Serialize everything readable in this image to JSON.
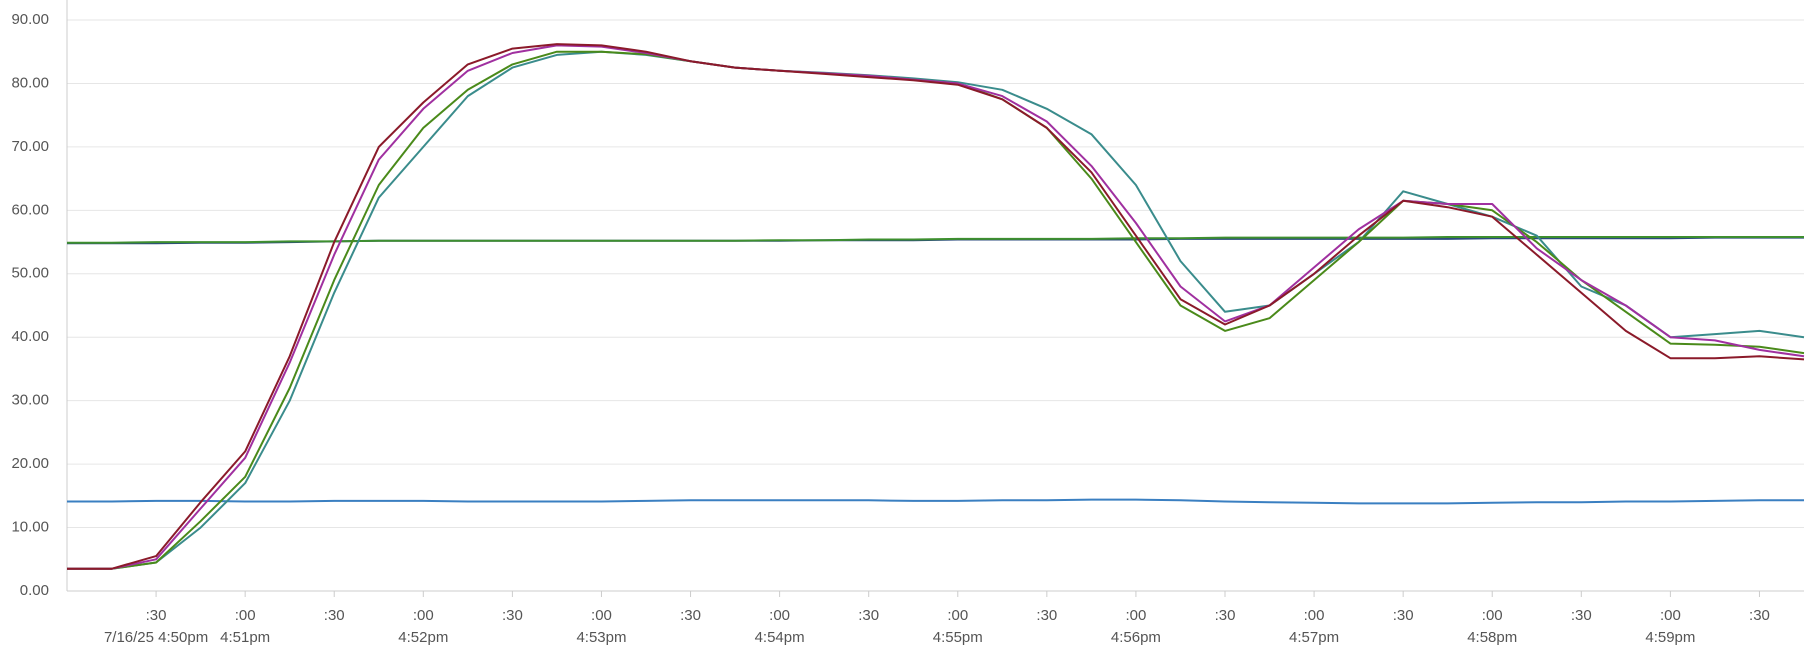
{
  "chart_data": {
    "type": "line",
    "x": [
      "16:50:00",
      "16:50:15",
      "16:50:30",
      "16:50:45",
      "16:51:00",
      "16:51:15",
      "16:51:30",
      "16:51:45",
      "16:52:00",
      "16:52:15",
      "16:52:30",
      "16:52:45",
      "16:53:00",
      "16:53:15",
      "16:53:30",
      "16:53:45",
      "16:54:00",
      "16:54:15",
      "16:54:30",
      "16:54:45",
      "16:55:00",
      "16:55:15",
      "16:55:30",
      "16:55:45",
      "16:56:00",
      "16:56:15",
      "16:56:30",
      "16:56:45",
      "16:57:00",
      "16:57:15",
      "16:57:30",
      "16:57:45",
      "16:58:00",
      "16:58:15",
      "16:58:30",
      "16:58:45",
      "16:59:00",
      "16:59:15",
      "16:59:30",
      "16:59:45"
    ],
    "xlim": [
      "16:50:00",
      "16:59:45"
    ],
    "xticks": [
      {
        "value": "16:50:30",
        "label": ":30"
      },
      {
        "value": "16:51:00",
        "label": ":00"
      },
      {
        "value": "16:51:30",
        "label": ":30"
      },
      {
        "value": "16:52:00",
        "label": ":00"
      },
      {
        "value": "16:52:30",
        "label": ":30"
      },
      {
        "value": "16:53:00",
        "label": ":00"
      },
      {
        "value": "16:53:30",
        "label": ":30"
      },
      {
        "value": "16:54:00",
        "label": ":00"
      },
      {
        "value": "16:54:30",
        "label": ":30"
      },
      {
        "value": "16:55:00",
        "label": ":00"
      },
      {
        "value": "16:55:30",
        "label": ":30"
      },
      {
        "value": "16:56:00",
        "label": ":00"
      },
      {
        "value": "16:56:30",
        "label": ":30"
      },
      {
        "value": "16:57:00",
        "label": ":00"
      },
      {
        "value": "16:57:30",
        "label": ":30"
      },
      {
        "value": "16:58:00",
        "label": ":00"
      },
      {
        "value": "16:58:30",
        "label": ":30"
      },
      {
        "value": "16:59:00",
        "label": ":00"
      },
      {
        "value": "16:59:30",
        "label": ":30"
      }
    ],
    "xticks_secondary": [
      {
        "value": "16:50:30",
        "label": "7/16/25 4:50pm"
      },
      {
        "value": "16:51:00",
        "label": "4:51pm"
      },
      {
        "value": "16:52:00",
        "label": "4:52pm"
      },
      {
        "value": "16:53:00",
        "label": "4:53pm"
      },
      {
        "value": "16:54:00",
        "label": "4:54pm"
      },
      {
        "value": "16:55:00",
        "label": "4:55pm"
      },
      {
        "value": "16:56:00",
        "label": "4:56pm"
      },
      {
        "value": "16:57:00",
        "label": "4:57pm"
      },
      {
        "value": "16:58:00",
        "label": "4:58pm"
      },
      {
        "value": "16:59:00",
        "label": "4:59pm"
      }
    ],
    "ylim": [
      0,
      90
    ],
    "yticks": [
      {
        "value": 0,
        "label": "0.00"
      },
      {
        "value": 10,
        "label": "10.00"
      },
      {
        "value": 20,
        "label": "20.00"
      },
      {
        "value": 30,
        "label": "30.00"
      },
      {
        "value": 40,
        "label": "40.00"
      },
      {
        "value": 50,
        "label": "50.00"
      },
      {
        "value": 60,
        "label": "60.00"
      },
      {
        "value": 70,
        "label": "70.00"
      },
      {
        "value": 80,
        "label": "80.00"
      },
      {
        "value": 90,
        "label": "90.00"
      }
    ],
    "grid": true,
    "series": [
      {
        "color": "#3a7fc1",
        "values": [
          14.1,
          14.1,
          14.2,
          14.2,
          14.1,
          14.1,
          14.2,
          14.2,
          14.2,
          14.1,
          14.1,
          14.1,
          14.1,
          14.2,
          14.3,
          14.3,
          14.3,
          14.3,
          14.3,
          14.2,
          14.2,
          14.3,
          14.3,
          14.4,
          14.4,
          14.3,
          14.1,
          14.0,
          13.9,
          13.8,
          13.8,
          13.8,
          13.9,
          14.0,
          14.0,
          14.1,
          14.1,
          14.2,
          14.3,
          14.3
        ]
      },
      {
        "color": "#2b4a7e",
        "values": [
          54.8,
          54.8,
          54.8,
          54.9,
          54.9,
          55,
          55.1,
          55.2,
          55.2,
          55.2,
          55.2,
          55.2,
          55.2,
          55.2,
          55.2,
          55.2,
          55.2,
          55.3,
          55.3,
          55.3,
          55.4,
          55.4,
          55.4,
          55.4,
          55.4,
          55.5,
          55.5,
          55.5,
          55.5,
          55.5,
          55.5,
          55.5,
          55.6,
          55.6,
          55.6,
          55.6,
          55.6,
          55.7,
          55.7,
          55.7
        ]
      },
      {
        "color": "#3e8f2f",
        "values": [
          54.9,
          54.9,
          55,
          55,
          55,
          55.1,
          55.1,
          55.2,
          55.2,
          55.2,
          55.2,
          55.2,
          55.2,
          55.2,
          55.2,
          55.2,
          55.3,
          55.3,
          55.4,
          55.4,
          55.5,
          55.5,
          55.5,
          55.5,
          55.6,
          55.6,
          55.7,
          55.7,
          55.7,
          55.7,
          55.7,
          55.8,
          55.8,
          55.8,
          55.8,
          55.8,
          55.8,
          55.8,
          55.8,
          55.8
        ]
      },
      {
        "color": "#3a8c8c",
        "values": [
          3.5,
          3.5,
          4.5,
          10,
          17,
          30,
          47,
          62,
          70,
          78,
          82.5,
          84.5,
          85,
          84.5,
          83.5,
          82.5,
          82,
          81.7,
          81.3,
          80.8,
          80.2,
          79,
          76,
          72,
          64,
          52,
          44,
          45,
          50,
          55,
          63,
          61,
          59,
          56,
          48,
          45,
          40,
          40.5,
          41,
          40
        ]
      },
      {
        "color": "#4a8a1a",
        "values": [
          3.5,
          3.5,
          4.5,
          11,
          18,
          32,
          49,
          64,
          73,
          79,
          83,
          85,
          85,
          84.6,
          83.5,
          82.5,
          82,
          81.6,
          81.2,
          80.6,
          80,
          77.5,
          73,
          65,
          55,
          45,
          41,
          43,
          49,
          55,
          61.5,
          61,
          60,
          55,
          49,
          44,
          39,
          38.8,
          38.5,
          37.5
        ]
      },
      {
        "color": "#a030a0",
        "values": [
          3.5,
          3.5,
          5,
          13,
          21,
          36,
          53,
          68,
          76,
          82,
          84.8,
          86,
          85.8,
          84.8,
          83.5,
          82.5,
          82,
          81.6,
          81.2,
          80.6,
          80,
          78,
          74,
          67,
          58,
          48,
          42.5,
          45,
          51,
          57,
          61.5,
          61,
          61,
          54,
          49,
          45,
          40,
          39.5,
          38,
          37
        ]
      },
      {
        "color": "#8b1a2a",
        "values": [
          3.5,
          3.5,
          5.5,
          14,
          22,
          37,
          55,
          70,
          77,
          83,
          85.5,
          86.2,
          86,
          85,
          83.5,
          82.5,
          82,
          81.5,
          81,
          80.5,
          79.8,
          77.5,
          73,
          66,
          56,
          46,
          42,
          45,
          50,
          56,
          61.5,
          60.5,
          59,
          53,
          47,
          41,
          36.7,
          36.7,
          37,
          36.5
        ]
      }
    ]
  }
}
